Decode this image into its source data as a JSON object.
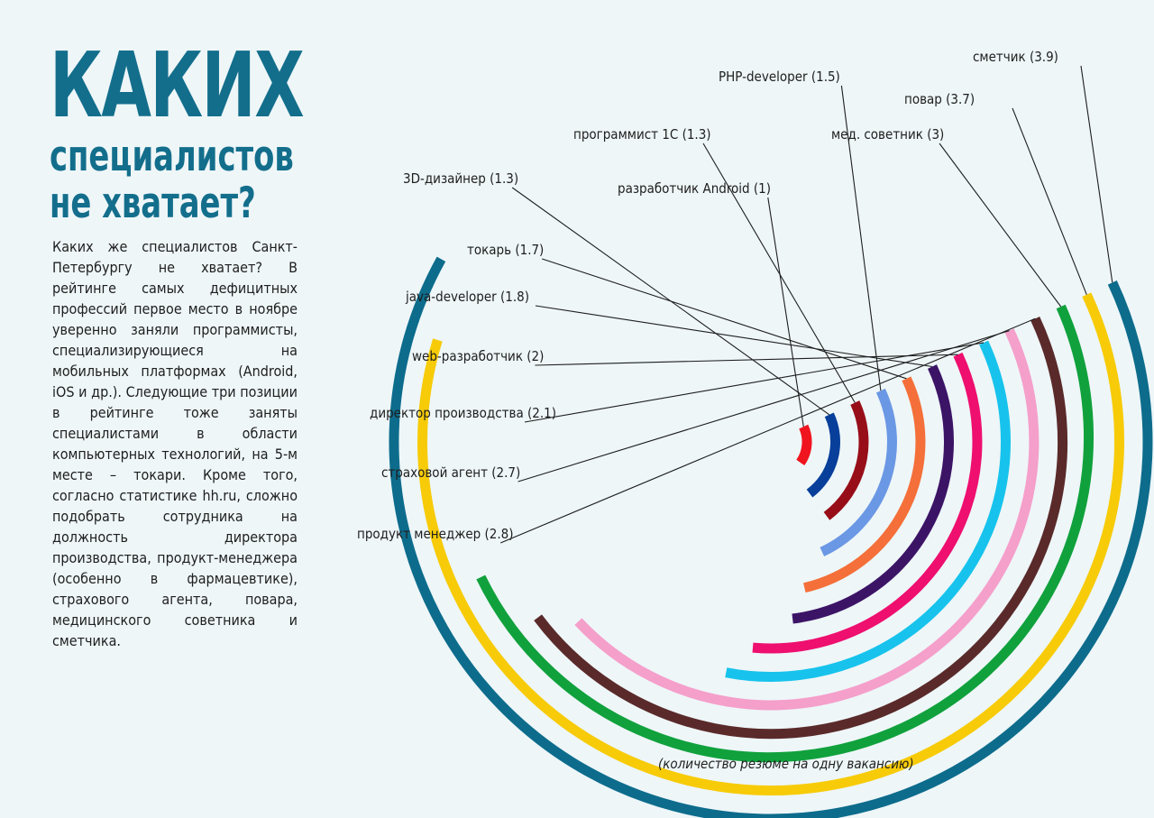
{
  "title": "КАКИХ",
  "subtitle": "специалистов\nне хватает?",
  "intro": "Каких же специалистов Санкт-Петербургу не хватает? В рейтинге самых дефицитных профессий первое место в ноябре уверенно заняли программисты, специализирующиеся на мобильных платформах (Android, iOS и др.). Следующие три позиции в рейтинге тоже заняты специалистами в области компьютерных технологий, на 5-м месте – токари. Кроме того, согласно статистике hh.ru, сложно подобрать сотрудника на должность директора производства, продукт-менеджера (особенно в фармацевтике), страхового агента, повара, медицинского советника и сметчика.",
  "chart_data": {
    "type": "radial-bar",
    "note": "(количество резюме на одну вакансию)",
    "series": [
      {
        "name": "разработчик Android",
        "value": 1,
        "label": "разработчик Android (1)",
        "color": "#f0141e"
      },
      {
        "name": "3D-дизайнер",
        "value": 1.3,
        "label": "3D-дизайнер (1.3)",
        "color": "#073f9a"
      },
      {
        "name": "программист 1С",
        "value": 1.3,
        "label": "программист 1С (1.3)",
        "color": "#980e18"
      },
      {
        "name": "PHP-developer",
        "value": 1.5,
        "label": "PHP-developer (1.5)",
        "color": "#6b98e4"
      },
      {
        "name": "токарь",
        "value": 1.7,
        "label": "токарь (1.7)",
        "color": "#f46f39"
      },
      {
        "name": "java-developer",
        "value": 1.8,
        "label": "java-developer (1.8)",
        "color": "#3c1466"
      },
      {
        "name": "web-разработчик",
        "value": 2,
        "label": "web-разработчик (2)",
        "color": "#ee0f6f"
      },
      {
        "name": "директор производства",
        "value": 2.1,
        "label": "директор производства (2.1)",
        "color": "#17c3ec"
      },
      {
        "name": "страховой агент",
        "value": 2.7,
        "label": "страховой агент (2.7)",
        "color": "#f59fcb"
      },
      {
        "name": "продукт менеджер",
        "value": 2.8,
        "label": "продукт менеджер (2.8)",
        "color": "#5a2a2a"
      },
      {
        "name": "мед. советник",
        "value": 3,
        "label": "мед. советник (3)",
        "color": "#10a13c"
      },
      {
        "name": "повар",
        "value": 3.7,
        "label": "повар (3.7)",
        "color": "#f7cb08"
      },
      {
        "name": "сметчик",
        "value": 3.9,
        "label": "сметчик (3.9)",
        "color": "#0d6c8c"
      }
    ]
  }
}
